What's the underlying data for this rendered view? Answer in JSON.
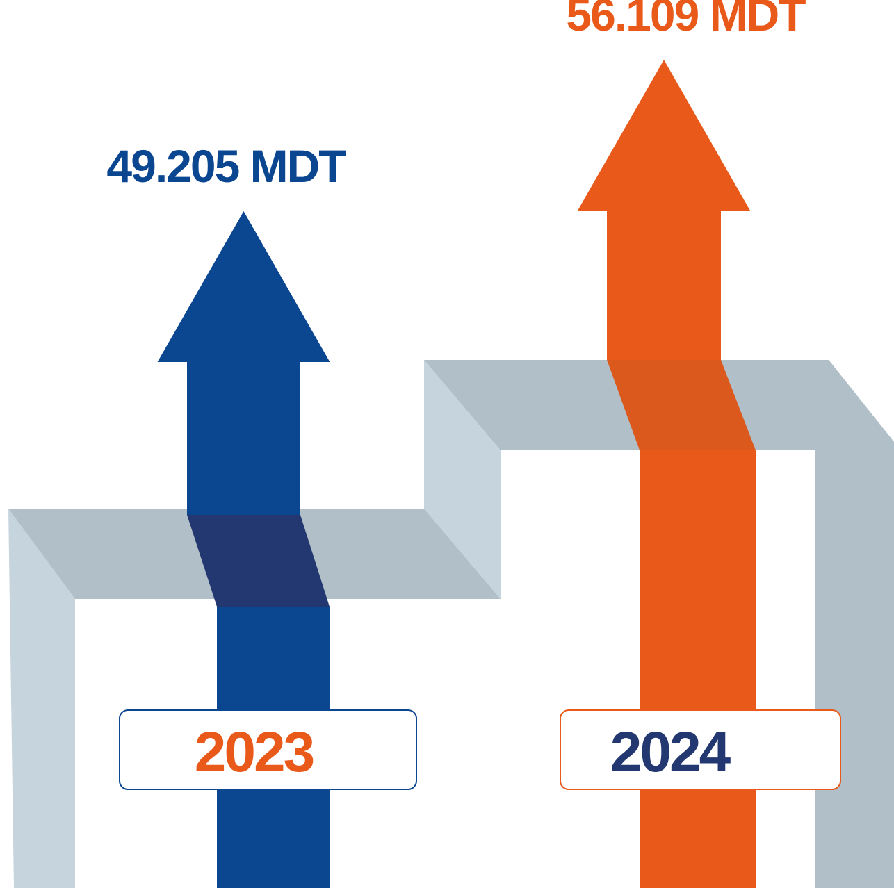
{
  "chart_data": {
    "type": "bar",
    "categories": [
      "2023",
      "2024"
    ],
    "series": [
      {
        "values": [
          49.205,
          56.109
        ]
      }
    ],
    "data_labels": [
      "49.205 MDT",
      "56.109 MDT"
    ],
    "unit": "MDT",
    "colors": {
      "2023": "#0b4690",
      "2024": "#e8591a",
      "2023_crossing": "#233870",
      "2024_crossing": "#dc591e",
      "step_top": "#b1bfc8",
      "step_side": "#c6d4dd",
      "year_2023_text": "#e8591a",
      "year_2024_text": "#233870"
    }
  }
}
